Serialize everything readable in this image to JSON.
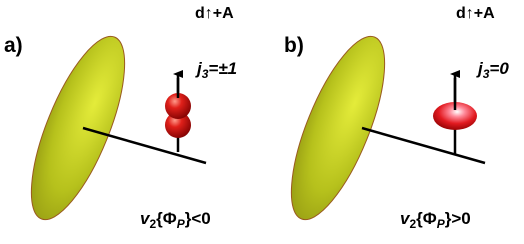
{
  "panels": [
    {
      "label": "a)",
      "title": "d↑+A",
      "j_var": "j",
      "j_sub": "3",
      "j_rel": "=±1",
      "v_var": "v",
      "v_sub": "2",
      "v_open": "{Φ",
      "v_phi_sub": "P",
      "v_rel": "}<0"
    },
    {
      "label": "b)",
      "title": "d↑+A",
      "j_var": "j",
      "j_sub": "3",
      "j_rel": "=0",
      "v_var": "v",
      "v_sub": "2",
      "v_open": "{Φ",
      "v_phi_sub": "P",
      "v_rel": "}>0"
    }
  ]
}
